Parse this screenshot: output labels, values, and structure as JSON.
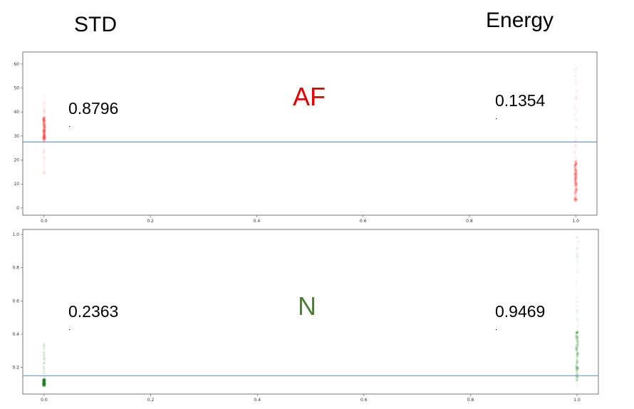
{
  "headers": {
    "left": "STD",
    "right": "Energy"
  },
  "chart_data": [
    {
      "type": "scatter",
      "panel_label": "AF",
      "panel_label_color": "#e00000",
      "series_color": "#ff0000",
      "xlim": [
        -0.04,
        1.04
      ],
      "ylim": [
        -3,
        65
      ],
      "xticks": [
        "0.0",
        "0.2",
        "0.4",
        "0.6",
        "0.8",
        "1.0"
      ],
      "xtick_values": [
        0,
        0.2,
        0.4,
        0.6,
        0.8,
        1.0
      ],
      "yticks": [
        "0",
        "10",
        "20",
        "30",
        "40",
        "50",
        "60"
      ],
      "ytick_values": [
        0,
        10,
        20,
        30,
        40,
        50,
        60
      ],
      "threshold_line_y": 27.5,
      "threshold_color": "#5b9bd5",
      "std_value_label": "0.8796",
      "energy_value_label": "0.1354",
      "std_cluster": {
        "x": 0.0,
        "y_range": [
          14,
          47
        ],
        "dense_range": [
          28,
          38
        ]
      },
      "energy_cluster": {
        "x": 1.0,
        "y_range": [
          2,
          61
        ],
        "dense_range": [
          3,
          20
        ]
      },
      "grid": false
    },
    {
      "type": "scatter",
      "panel_label": "N",
      "panel_label_color": "#4e7f35",
      "series_color": "#1a7a1a",
      "xlim": [
        -0.04,
        1.04
      ],
      "ylim": [
        0.04,
        1.03
      ],
      "xticks": [
        "0.0",
        "0.2",
        "0.4",
        "0.6",
        "0.8",
        "1.0"
      ],
      "xtick_values": [
        0,
        0.2,
        0.4,
        0.6,
        0.8,
        1.0
      ],
      "yticks": [
        "0.2",
        "0.4",
        "0.6",
        "0.8",
        "1.0"
      ],
      "ytick_values": [
        0.2,
        0.4,
        0.6,
        0.8,
        1.0
      ],
      "threshold_line_y": 0.15,
      "threshold_color": "#5b9bd5",
      "std_value_label": "0.2363",
      "energy_value_label": "0.9469",
      "std_cluster": {
        "x": 0.0,
        "y_range": [
          0.08,
          0.35
        ],
        "dense_range": [
          0.09,
          0.13
        ]
      },
      "energy_cluster": {
        "x": 1.0,
        "y_range": [
          0.08,
          1.0
        ],
        "dense_range": [
          0.12,
          0.42
        ]
      },
      "grid": false
    }
  ]
}
